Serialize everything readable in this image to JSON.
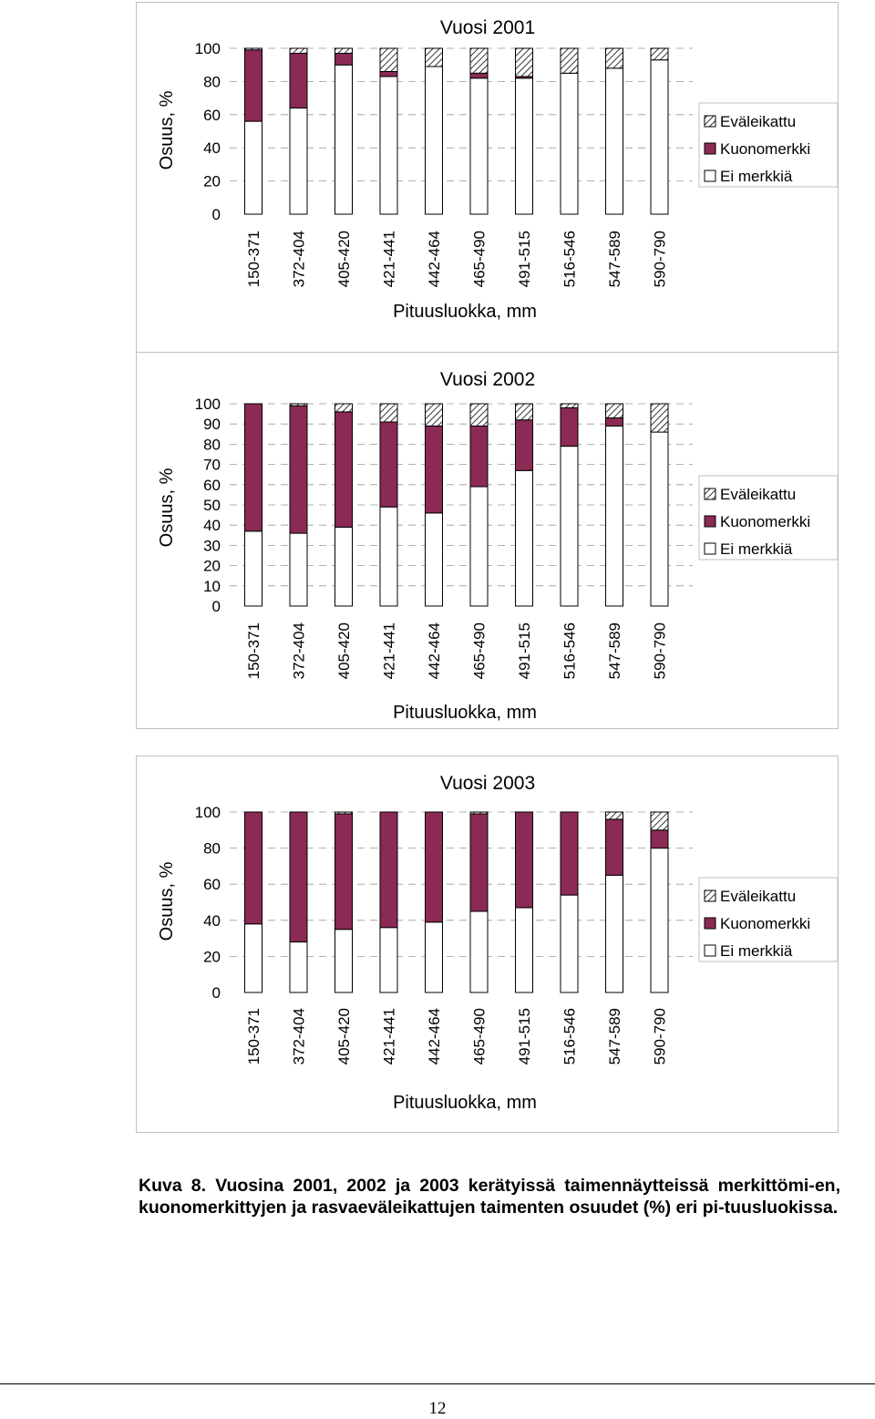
{
  "chart_data": [
    {
      "type": "bar",
      "stacked": true,
      "title": "Vuosi 2001",
      "xlabel": "Pituusluokka, mm",
      "ylabel": "Osuus, %",
      "ylim": [
        0,
        100
      ],
      "yticks": [
        0,
        20,
        40,
        60,
        80,
        100
      ],
      "grid": "dashed horizontal",
      "legend_position": "right",
      "categories": [
        "150-371",
        "372-404",
        "405-420",
        "421-441",
        "442-464",
        "465-490",
        "491-515",
        "516-546",
        "547-589",
        "590-790"
      ],
      "series": [
        {
          "name": "Ei merkkiä",
          "values": [
            56,
            64,
            90,
            83,
            89,
            82,
            82,
            85,
            88,
            93
          ]
        },
        {
          "name": "Kuonomerkki",
          "values": [
            43,
            33,
            7,
            3,
            0,
            3,
            1,
            0,
            0,
            0
          ]
        },
        {
          "name": "Eväleikattu",
          "values": [
            1,
            3,
            3,
            14,
            11,
            15,
            17,
            15,
            12,
            7
          ]
        }
      ]
    },
    {
      "type": "bar",
      "stacked": true,
      "title": "Vuosi 2002",
      "xlabel": "Pituusluokka, mm",
      "ylabel": "Osuus, %",
      "ylim": [
        0,
        100
      ],
      "yticks": [
        0,
        10,
        20,
        30,
        40,
        50,
        60,
        70,
        80,
        90,
        100
      ],
      "grid": "dashed horizontal",
      "legend_position": "right",
      "categories": [
        "150-371",
        "372-404",
        "405-420",
        "421-441",
        "442-464",
        "465-490",
        "491-515",
        "516-546",
        "547-589",
        "590-790"
      ],
      "series": [
        {
          "name": "Ei merkkiä",
          "values": [
            37,
            36,
            39,
            49,
            46,
            59,
            67,
            79,
            89,
            86
          ]
        },
        {
          "name": "Kuonomerkki",
          "values": [
            63,
            63,
            57,
            42,
            43,
            30,
            25,
            19,
            4,
            0
          ]
        },
        {
          "name": "Eväleikattu",
          "values": [
            0,
            1,
            4,
            9,
            11,
            11,
            8,
            2,
            7,
            14
          ]
        }
      ]
    },
    {
      "type": "bar",
      "stacked": true,
      "title": "Vuosi 2003",
      "xlabel": "Pituusluokka, mm",
      "ylabel": "Osuus, %",
      "ylim": [
        0,
        100
      ],
      "yticks": [
        0,
        20,
        40,
        60,
        80,
        100
      ],
      "grid": "dashed horizontal",
      "legend_position": "right",
      "categories": [
        "150-371",
        "372-404",
        "405-420",
        "421-441",
        "442-464",
        "465-490",
        "491-515",
        "516-546",
        "547-589",
        "590-790"
      ],
      "series": [
        {
          "name": "Ei merkkiä",
          "values": [
            38,
            28,
            35,
            36,
            39,
            45,
            47,
            54,
            65,
            80
          ]
        },
        {
          "name": "Kuonomerkki",
          "values": [
            62,
            72,
            64,
            64,
            61,
            54,
            53,
            46,
            31,
            10
          ]
        },
        {
          "name": "Eväleikattu",
          "values": [
            0,
            0,
            1,
            0,
            0,
            1,
            0,
            0,
            4,
            10
          ]
        }
      ]
    }
  ],
  "legend_items": [
    {
      "label": "Eväleikattu",
      "swatch": "hatched"
    },
    {
      "label": "Kuonomerkki",
      "swatch": "solid"
    },
    {
      "label": "Ei merkkiä",
      "swatch": "white"
    }
  ],
  "colors": {
    "kuonomerkki": "#8b2a55",
    "ei_merkkia": "#ffffff",
    "evaleikattu_hatch": "#000000",
    "bar_outline": "#000000",
    "gridline": "#999999",
    "chart_border": "#bfbfbf"
  },
  "caption": "Kuva 8. Vuosina 2001, 2002 ja 2003 kerätyissä taimennäytteissä merkittömi-en, kuonomerkittyjen ja rasvaeväleikattujen taimenten osuudet (%) eri pi-tuusluokissa.",
  "page_number": "12"
}
